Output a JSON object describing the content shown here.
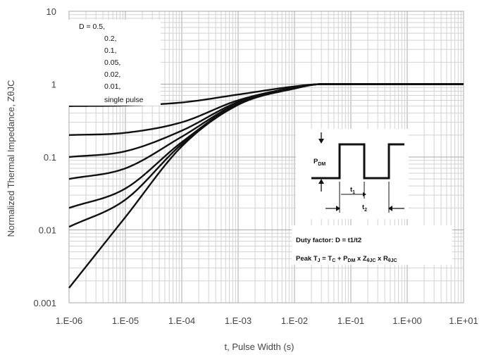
{
  "chart_data": {
    "type": "line",
    "x_scale": "log",
    "y_scale": "log",
    "xlim": [
      1e-06,
      10
    ],
    "ylim": [
      0.001,
      10
    ],
    "grid": true,
    "xlabel": "t, Pulse Width (s)",
    "ylabel": "Normalized Thermal Impedance, ZθJC",
    "x_tick_labels": [
      "1.E-06",
      "1.E-05",
      "1.E-04",
      "1.E-03",
      "1.E-02",
      "1.E-01",
      "1.E+00",
      "1.E+01"
    ],
    "y_tick_labels": [
      "0.001",
      "0.01",
      "0.1",
      "1",
      "10"
    ],
    "legend": {
      "placement": "top-left",
      "entries": [
        "D = 0.5,",
        "0.2,",
        "0.1,",
        "0.05,",
        "0.02,",
        "0.01,",
        "single pulse"
      ]
    },
    "series": [
      {
        "name": "D = 0.5",
        "x": [
          1e-06,
          1e-05,
          0.0001,
          0.001,
          0.01,
          0.03,
          10
        ],
        "y": [
          0.5,
          0.51,
          0.56,
          0.72,
          0.93,
          1.0,
          1.0
        ]
      },
      {
        "name": "0.2",
        "x": [
          1e-06,
          1e-05,
          0.0001,
          0.001,
          0.01,
          0.03,
          10
        ],
        "y": [
          0.2,
          0.215,
          0.3,
          0.6,
          0.9,
          1.0,
          1.0
        ]
      },
      {
        "name": "0.1",
        "x": [
          1e-06,
          1e-05,
          0.0001,
          0.001,
          0.01,
          0.03,
          10
        ],
        "y": [
          0.1,
          0.12,
          0.23,
          0.57,
          0.89,
          1.0,
          1.0
        ]
      },
      {
        "name": "0.05",
        "x": [
          1e-06,
          1e-05,
          0.0001,
          0.001,
          0.01,
          0.03,
          10
        ],
        "y": [
          0.05,
          0.07,
          0.19,
          0.55,
          0.88,
          1.0,
          1.0
        ]
      },
      {
        "name": "0.02",
        "x": [
          1e-06,
          1e-05,
          0.0001,
          0.001,
          0.01,
          0.03,
          10
        ],
        "y": [
          0.02,
          0.037,
          0.16,
          0.54,
          0.88,
          1.0,
          1.0
        ]
      },
      {
        "name": "0.01",
        "x": [
          1e-06,
          1e-05,
          0.0001,
          0.001,
          0.01,
          0.03,
          10
        ],
        "y": [
          0.011,
          0.026,
          0.15,
          0.53,
          0.87,
          1.0,
          1.0
        ]
      },
      {
        "name": "single pulse",
        "x": [
          1e-06,
          1e-05,
          0.0001,
          0.001,
          0.01,
          0.03,
          10
        ],
        "y": [
          0.0016,
          0.015,
          0.14,
          0.52,
          0.87,
          1.0,
          1.0
        ]
      }
    ],
    "annotations": {
      "pdm": "P",
      "pdm_sub": "DM",
      "t1": "t",
      "t1_sub": "1",
      "t2": "t",
      "t2_sub": "2",
      "duty_factor": "Duty factor: D = t1/t2",
      "peak_prefix": "Peak T",
      "peak_j_sub": "J",
      "peak_eq1": " = T",
      "peak_c_sub": "C",
      "peak_plus": " + P",
      "peak_dm_sub": "DM",
      "peak_x1": " x Z",
      "peak_z_sub": "θJC",
      "peak_x2": " x R",
      "peak_r_sub": "θJC"
    }
  }
}
